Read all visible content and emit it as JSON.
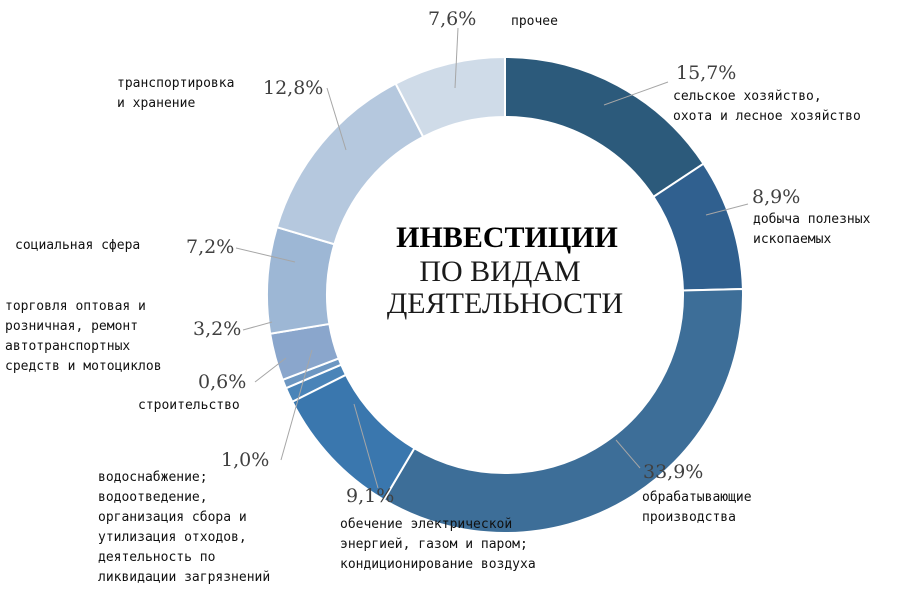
{
  "chart_data": {
    "type": "pie",
    "variant": "donut",
    "title_lines": [
      "ИНВЕСТИЦИИ",
      "ПО ВИДАМ",
      "ДЕЯТЕЛЬНОСТИ"
    ],
    "legend": "none",
    "slices": [
      {
        "value_label": "15,7%",
        "value": 15.7,
        "color": "#2c5a7b",
        "label_lines": [
          "сельское хозяйство,",
          "охота и лесное хозяйство"
        ]
      },
      {
        "value_label": "8,9%",
        "value": 8.9,
        "color": "#30608f",
        "label_lines": [
          "добыча полезных",
          "ископаемых"
        ]
      },
      {
        "value_label": "33,9%",
        "value": 33.9,
        "color": "#3d6e98",
        "label_lines": [
          "обрабатывающие",
          "производства"
        ]
      },
      {
        "value_label": "9,1%",
        "value": 9.1,
        "color": "#3a77ae",
        "label_lines": [
          "обечение электрической",
          "энергией, газом и паром;",
          "кондиционирование воздуха"
        ]
      },
      {
        "value_label": "1,0%",
        "value": 1.0,
        "color": "#4a84b8",
        "label_lines": [
          "водоснабжение;",
          "водоотведение,",
          "организация сбора и",
          "утилизация отходов,",
          "деятельность по",
          "ликвидации загрязнений"
        ]
      },
      {
        "value_label": "0,6%",
        "value": 0.6,
        "color": "#6d97c2",
        "label_lines": [
          "строительство"
        ]
      },
      {
        "value_label": "3,2%",
        "value": 3.2,
        "color": "#8aa6cc",
        "label_lines": [
          "торговля оптовая и",
          "розничная, ремонт",
          "автотранспортных",
          "средств и мотоциклов"
        ]
      },
      {
        "value_label": "7,2%",
        "value": 7.2,
        "color": "#9db7d5",
        "label_lines": [
          "социальная сфера"
        ]
      },
      {
        "value_label": "12,8%",
        "value": 12.8,
        "color": "#b5c8de",
        "label_lines": [
          "транспортировка",
          "и хранение"
        ]
      },
      {
        "value_label": "7,6%",
        "value": 7.6,
        "color": "#cfdbe8",
        "label_lines": [
          "прочее"
        ]
      }
    ]
  }
}
